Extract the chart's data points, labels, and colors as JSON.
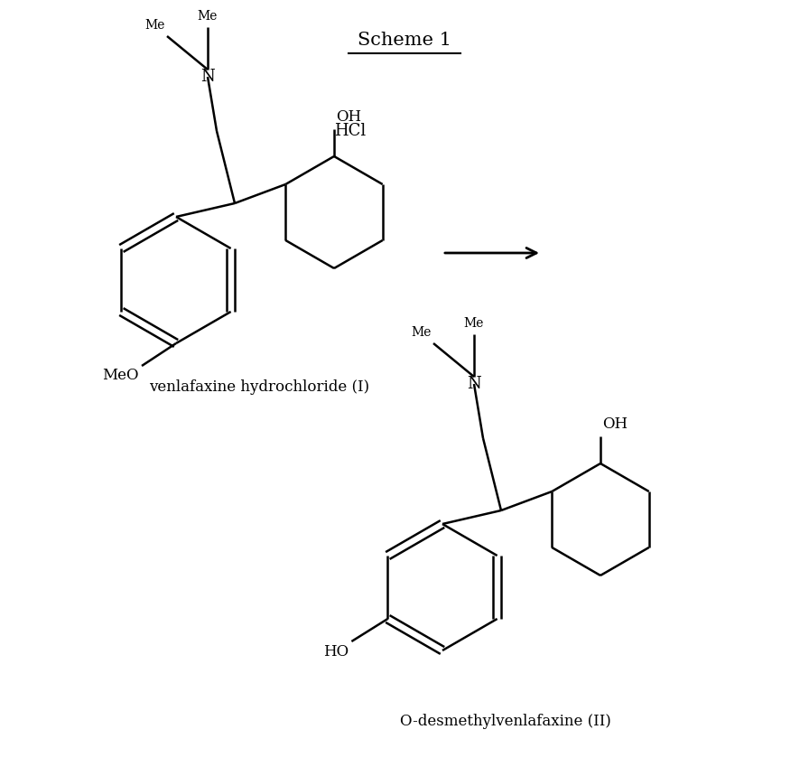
{
  "title": "Scheme 1",
  "bg_color": "#ffffff",
  "line_color": "#000000",
  "label1": "venlafaxine hydrochloride (I)",
  "label2": "O-desmethylvenlafaxine (II)",
  "hcl_label": "HCl",
  "oh_label": "OH",
  "meo_label": "MeO",
  "ho_label": "HO",
  "n_label": "N",
  "me_label": "Me",
  "font_size_title": 15,
  "font_size_label": 12,
  "font_size_atom": 11,
  "font_size_me": 10
}
